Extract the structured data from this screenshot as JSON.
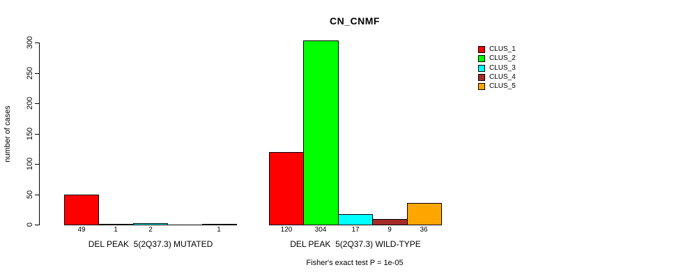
{
  "chart_data": {
    "type": "bar",
    "title": "CN_CNMF",
    "ylabel": "number of cases",
    "ylim": [
      0,
      300
    ],
    "y_ticks": [
      0,
      50,
      100,
      150,
      200,
      250,
      300
    ],
    "grid": false,
    "legend_position": "right",
    "cluster_colors": [
      "#FF0000",
      "#00FF00",
      "#00FFFF",
      "#A52A2A",
      "#FFA500"
    ],
    "legend": [
      {
        "label": "CLUS_1",
        "color": "#FF0000"
      },
      {
        "label": "CLUS_2",
        "color": "#00FF00"
      },
      {
        "label": "CLUS_3",
        "color": "#00FFFF"
      },
      {
        "label": "CLUS_4",
        "color": "#A52A2A"
      },
      {
        "label": "CLUS_5",
        "color": "#FFA500"
      }
    ],
    "groups": [
      {
        "label": "DEL PEAK  5(2Q37.3) MUTATED",
        "values": [
          49,
          1,
          2,
          0,
          1
        ],
        "count_labels": [
          "49",
          "1",
          "2",
          "",
          "1"
        ]
      },
      {
        "label": "DEL PEAK  5(2Q37.3) WILD-TYPE",
        "values": [
          120,
          304,
          17,
          9,
          36
        ],
        "count_labels": [
          "120",
          "304",
          "17",
          "9",
          "36"
        ]
      }
    ],
    "footnote": "Fisher's exact test P = 1e-05"
  }
}
